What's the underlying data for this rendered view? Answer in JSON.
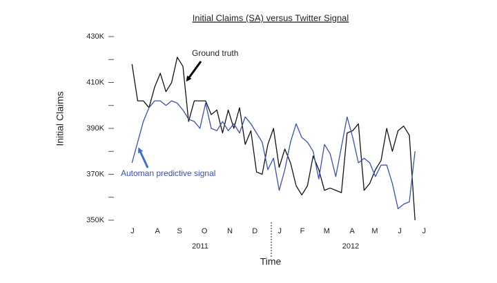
{
  "chart_data": {
    "type": "line",
    "title": "Initial Claims (SA) versus Twitter Signal",
    "x_label": "Time",
    "y_label": "Initial Claims",
    "year_labels": [
      "2011",
      "2012"
    ],
    "annotations": [
      "Ground truth",
      "Automan predictive signal"
    ],
    "x": [
      0,
      1,
      2,
      3,
      4,
      5,
      6,
      7,
      8,
      9,
      10,
      11,
      12,
      13,
      14,
      15,
      16,
      17,
      18,
      19,
      20,
      21,
      22,
      23,
      24,
      25,
      26,
      27,
      28,
      29,
      30,
      31,
      32,
      33,
      34,
      35,
      36,
      37,
      38,
      39,
      40,
      41,
      42,
      43,
      44,
      45,
      46,
      47,
      48,
      49,
      50
    ],
    "xlim": [
      -3.2,
      52.9
    ],
    "xticks": [
      {
        "value": 0.1,
        "label": "J"
      },
      {
        "value": 4.5,
        "label": "A"
      },
      {
        "value": 8.4,
        "label": "S"
      },
      {
        "value": 12.8,
        "label": "O"
      },
      {
        "value": 17.3,
        "label": "N"
      },
      {
        "value": 21.7,
        "label": "D"
      },
      {
        "value": 26.1,
        "label": "J"
      },
      {
        "value": 30.1,
        "label": "F"
      },
      {
        "value": 34.4,
        "label": "M"
      },
      {
        "value": 38.9,
        "label": "A"
      },
      {
        "value": 42.9,
        "label": "M"
      },
      {
        "value": 47.3,
        "label": "J"
      },
      {
        "value": 51.6,
        "label": "J"
      }
    ],
    "ylim": [
      350000,
      430000
    ],
    "yticks": [
      {
        "value": 430000,
        "label": "430K"
      },
      {
        "value": 410000,
        "label": "410K"
      },
      {
        "value": 390000,
        "label": "390K"
      },
      {
        "value": 370000,
        "label": "370K"
      },
      {
        "value": 350000,
        "label": "350K"
      }
    ],
    "minor_yticks": [
      420000,
      400000,
      380000,
      360000
    ],
    "series": [
      {
        "name": "Ground truth",
        "color": "#111111",
        "values": [
          418000,
          402000,
          402000,
          399000,
          408000,
          414000,
          406000,
          410000,
          421000,
          417000,
          393000,
          402000,
          402000,
          402000,
          396000,
          398000,
          388000,
          398000,
          390000,
          399000,
          383000,
          389000,
          371000,
          370000,
          383000,
          390000,
          373000,
          381000,
          375000,
          365000,
          361000,
          365000,
          378000,
          372000,
          363000,
          364000,
          363000,
          362000,
          388000,
          389000,
          392000,
          363000,
          366000,
          372000,
          376000,
          390000,
          380000,
          389000,
          391000,
          387000,
          350000
        ]
      },
      {
        "name": "Automan predictive signal",
        "color": "#3a4fb0",
        "values": [
          375000,
          384000,
          393000,
          399000,
          402000,
          402000,
          400000,
          402000,
          401000,
          398000,
          394000,
          393000,
          390000,
          401000,
          390000,
          389000,
          393000,
          389000,
          392000,
          388000,
          395000,
          392000,
          388000,
          384000,
          372000,
          377000,
          363000,
          372000,
          384000,
          392000,
          386000,
          384000,
          380000,
          368000,
          383000,
          379000,
          369000,
          382000,
          395000,
          386000,
          375000,
          377000,
          375000,
          369000,
          374000,
          374000,
          366000,
          355000,
          357000,
          358000,
          380000
        ]
      }
    ]
  }
}
